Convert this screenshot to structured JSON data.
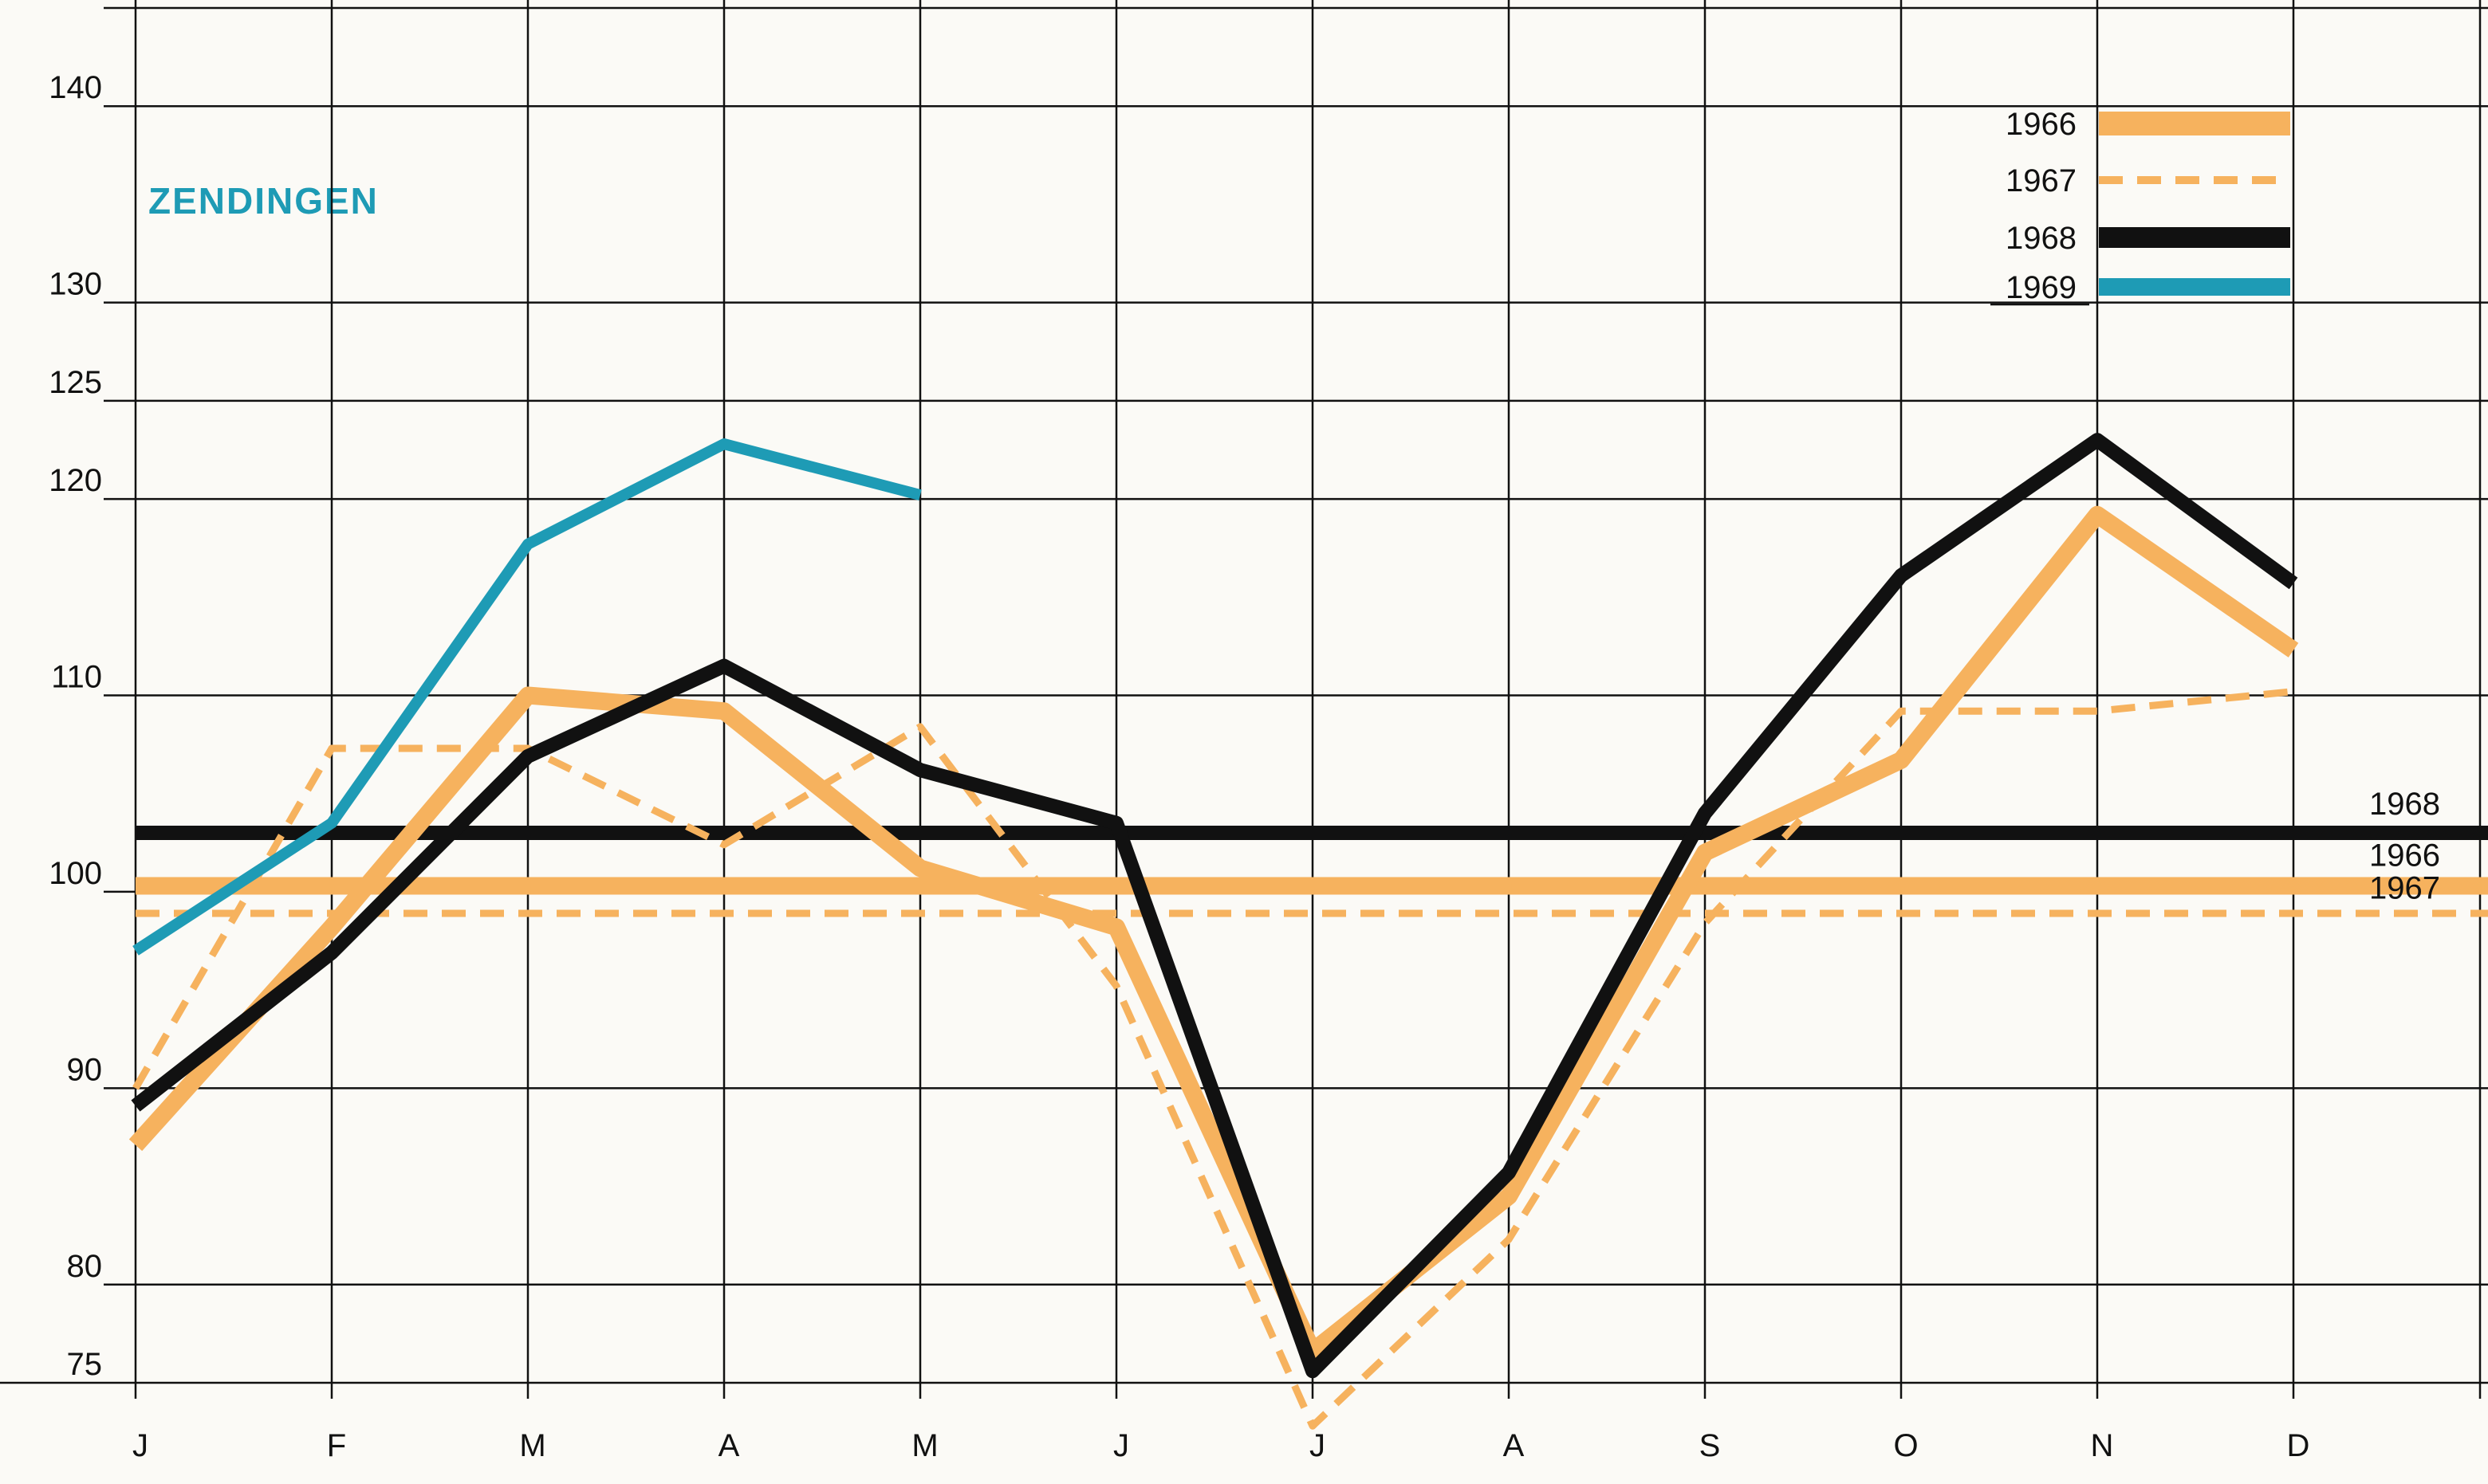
{
  "chart_data": {
    "type": "line",
    "title": "ZENDINGEN",
    "categories": [
      "J",
      "F",
      "M",
      "A",
      "M",
      "J",
      "J",
      "A",
      "S",
      "O",
      "N",
      "D"
    ],
    "series": [
      {
        "name": "1966",
        "color": "#f6b25e",
        "dashed": false,
        "values": [
          87.1,
          98.2,
          110,
          109.2,
          101.2,
          98.2,
          76.6,
          84.5,
          102,
          106.7,
          119.2,
          112.3
        ]
      },
      {
        "name": "1967",
        "color": "#f6b25e",
        "dashed": true,
        "values": [
          90,
          107.3,
          107.3,
          102.4,
          108.4,
          95.2,
          72.8,
          82.3,
          98.4,
          109.2,
          109.2,
          110.2
        ]
      },
      {
        "name": "1968",
        "color": "#111111",
        "dashed": false,
        "values": [
          89.1,
          96.9,
          106.9,
          111.5,
          106.2,
          103.5,
          75.6,
          85.7,
          104,
          116.1,
          123,
          115.7
        ]
      },
      {
        "name": "1969",
        "color": "#1e9bb5",
        "dashed": false,
        "values": [
          97,
          103.5,
          117.7,
          122.8,
          120.2,
          null,
          null,
          null,
          null,
          null,
          null,
          null
        ]
      }
    ],
    "reference_lines": [
      {
        "label": "1968",
        "value": 103,
        "color": "#111111",
        "dashed": false
      },
      {
        "label": "1966",
        "value": 100.3,
        "color": "#f6b25e",
        "dashed": false
      },
      {
        "label": "1967",
        "value": 98.9,
        "color": "#f6b25e",
        "dashed": true
      }
    ],
    "ylim": [
      75,
      145
    ],
    "yticks": [
      75,
      80,
      90,
      100,
      110,
      120,
      125,
      130,
      140
    ],
    "grid": true
  }
}
